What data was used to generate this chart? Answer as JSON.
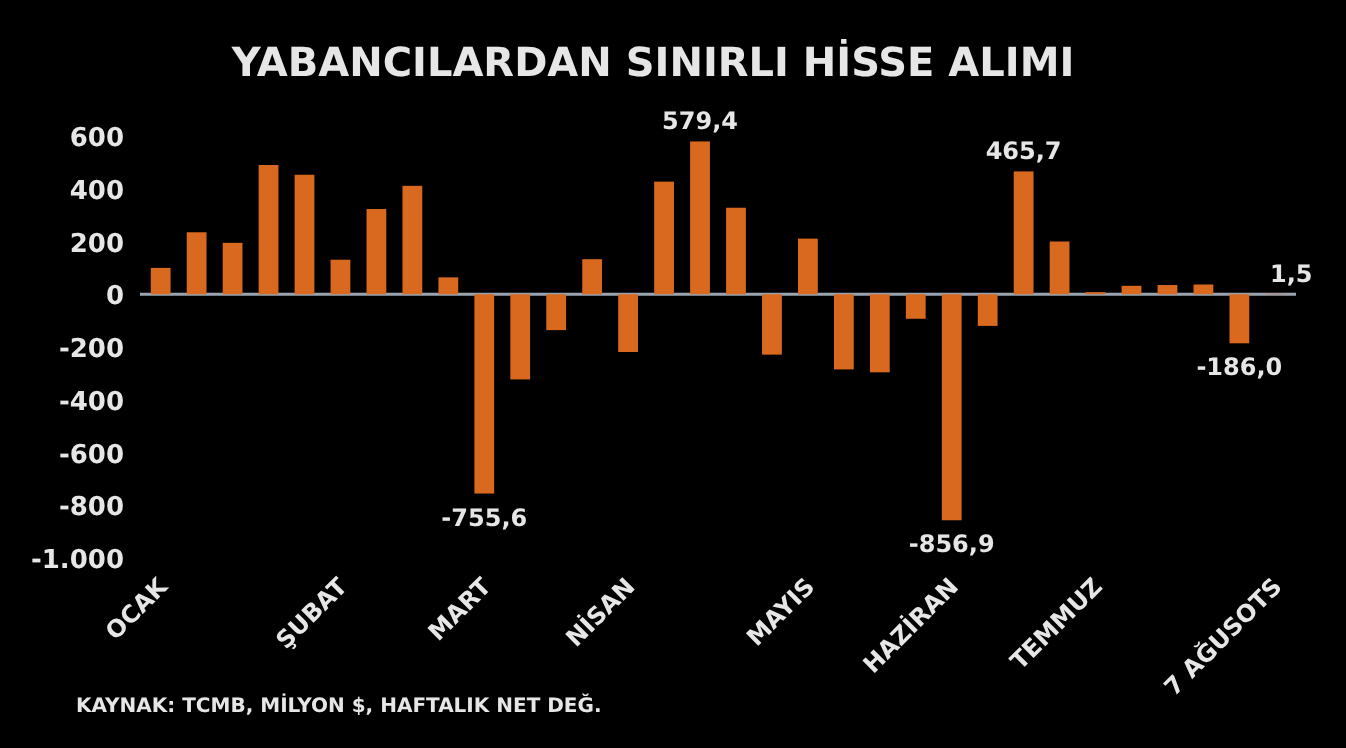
{
  "chart_data": {
    "type": "bar",
    "title": "YABANCILARDAN SINIRLI HİSSE ALIMI",
    "categories": [
      "OCAK",
      null,
      null,
      null,
      null,
      "ŞUBAT",
      null,
      null,
      null,
      "MART",
      null,
      null,
      null,
      "NİSAN",
      null,
      null,
      null,
      null,
      "MAYIS",
      null,
      null,
      null,
      "HAZİRAN",
      null,
      null,
      null,
      "TEMMUZ",
      null,
      null,
      null,
      null,
      "7 AĞUSOTS"
    ],
    "values": [
      100,
      235,
      195,
      490,
      453,
      131,
      323,
      411,
      64,
      -755.6,
      -323,
      -136,
      133,
      -219,
      427,
      579.4,
      328,
      -229,
      211,
      -285,
      -296,
      -93,
      -856.9,
      -120,
      465.7,
      200,
      8,
      32,
      35,
      37,
      -186.0,
      1.5
    ],
    "value_labels": [
      null,
      null,
      null,
      null,
      null,
      null,
      null,
      null,
      null,
      "-755,6",
      null,
      null,
      null,
      null,
      null,
      "579,4",
      null,
      null,
      null,
      null,
      null,
      null,
      "-856,9",
      null,
      "465,7",
      null,
      null,
      null,
      null,
      null,
      "-186,0",
      "1,5"
    ],
    "color": "#d9691f",
    "ylim": [
      -1000,
      600
    ],
    "yticks": [
      {
        "value": 600,
        "label": "600"
      },
      {
        "value": 400,
        "label": "400"
      },
      {
        "value": 200,
        "label": "200"
      },
      {
        "value": 0,
        "label": "0"
      },
      {
        "value": -200,
        "label": "-200"
      },
      {
        "value": -400,
        "label": "-400"
      },
      {
        "value": -600,
        "label": "-600"
      },
      {
        "value": -800,
        "label": "-800"
      },
      {
        "value": -1000,
        "label": "-1.000"
      }
    ],
    "annotations": [
      "KAYNAK: TCMB, MİLYON $, HAFTALIK NET DEĞ."
    ]
  }
}
